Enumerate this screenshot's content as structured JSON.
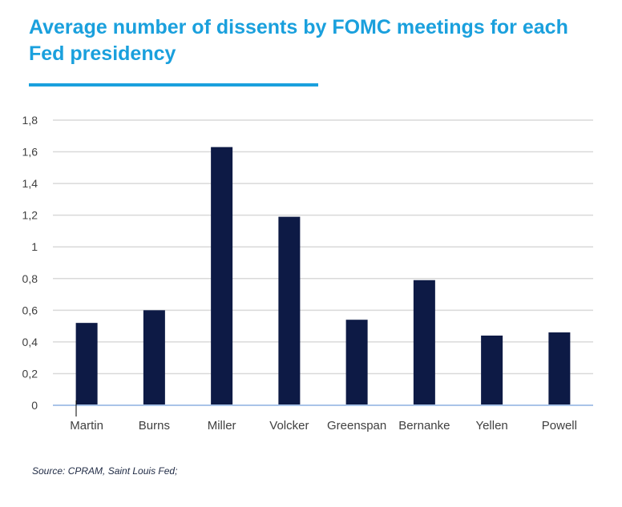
{
  "title": "Average number of dissents by FOMC meetings for each Fed presidency",
  "source": "Source: CPRAM, Saint Louis Fed;",
  "colors": {
    "title": "#1aa0dd",
    "bar": "#0d1a45",
    "grid": "#d9d9d9",
    "axis": "#a9c4e8"
  },
  "chart_data": {
    "type": "bar",
    "categories": [
      "Martin",
      "Burns",
      "Miller",
      "Volcker",
      "Greenspan",
      "Bernanke",
      "Yellen",
      "Powell"
    ],
    "values": [
      0.52,
      0.6,
      1.63,
      1.19,
      0.54,
      0.79,
      0.44,
      0.46
    ],
    "ylim": [
      0,
      1.8
    ],
    "yticks": [
      0,
      0.2,
      0.4,
      0.6,
      0.8,
      1,
      1.2,
      1.4,
      1.6,
      1.8
    ],
    "ytick_labels": [
      "0",
      "0,2",
      "0,4",
      "0,6",
      "0,8",
      "1",
      "1,2",
      "1,4",
      "1,6",
      "1,8"
    ],
    "grid": true,
    "legend": "none"
  }
}
